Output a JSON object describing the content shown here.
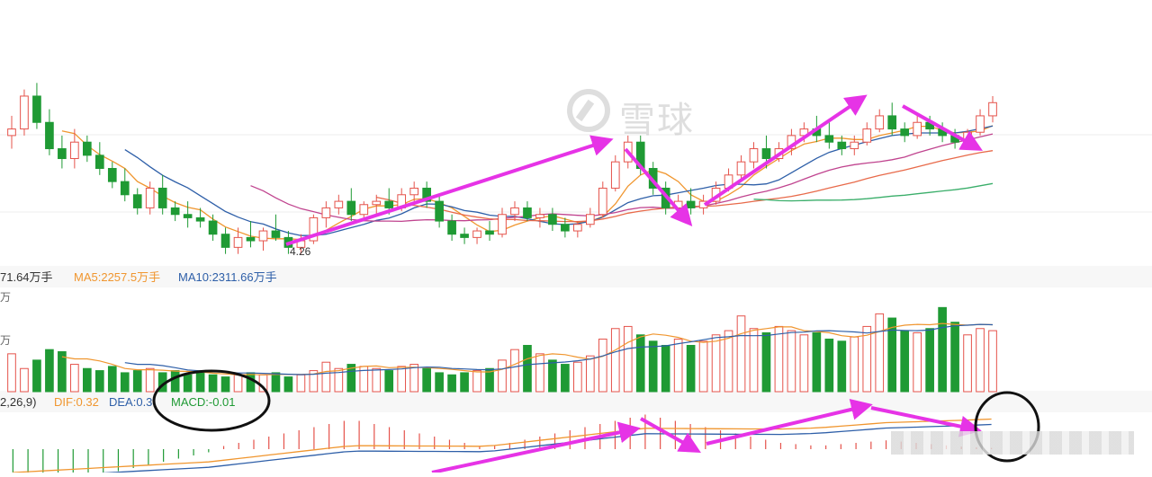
{
  "watermark": {
    "text": "雪球",
    "logo_icon": "xueqiu-logo-icon"
  },
  "price_panel": {
    "low_label": "4.26",
    "colors": {
      "up": "#e5534b",
      "down": "#1f9a34",
      "ma5": "#f0962f",
      "ma10": "#2e5fa8",
      "ma20": "#c0448f",
      "ma30": "#e86a4a",
      "ma60": "#3aae6a"
    }
  },
  "volume_labels": {
    "vol": "71.64万手",
    "ma5": "MA5:2257.5万手",
    "ma10": "MA10:2311.66万手",
    "axis_top": "万",
    "axis_mid": "万"
  },
  "macd_labels": {
    "params": "2,26,9)",
    "dif": "DIF:0.32",
    "dea": "DEA:0.3",
    "macd": "MACD:-0.01"
  },
  "annotations": {
    "arrow_color": "#e633e6",
    "circle_color": "#111111"
  },
  "chart_data": [
    {
      "type": "candlestick",
      "title": "",
      "candles_desc": "down-trend, base near 4.26, rally, pullback, rally, pullback, up",
      "low_marker": "4.26",
      "series": [
        {
          "name": "",
          "color": "#f0962f"
        },
        {
          "name": "",
          "color": "#2e5fa8"
        },
        {
          "name": "",
          "color": "#c0448f"
        },
        {
          "name": "",
          "color": "#3aae6a"
        }
      ],
      "candles": [
        [
          4.62,
          4.68,
          4.58,
          4.64
        ],
        [
          4.64,
          4.76,
          4.62,
          4.74
        ],
        [
          4.74,
          4.78,
          4.64,
          4.66
        ],
        [
          4.66,
          4.7,
          4.56,
          4.58
        ],
        [
          4.58,
          4.62,
          4.52,
          4.55
        ],
        [
          4.55,
          4.64,
          4.52,
          4.6
        ],
        [
          4.6,
          4.62,
          4.54,
          4.56
        ],
        [
          4.56,
          4.6,
          4.5,
          4.52
        ],
        [
          4.52,
          4.54,
          4.46,
          4.48
        ],
        [
          4.48,
          4.52,
          4.42,
          4.44
        ],
        [
          4.44,
          4.46,
          4.38,
          4.4
        ],
        [
          4.4,
          4.48,
          4.38,
          4.46
        ],
        [
          4.46,
          4.5,
          4.38,
          4.4
        ],
        [
          4.4,
          4.42,
          4.36,
          4.38
        ],
        [
          4.38,
          4.42,
          4.34,
          4.37
        ],
        [
          4.37,
          4.4,
          4.34,
          4.36
        ],
        [
          4.36,
          4.38,
          4.3,
          4.32
        ],
        [
          4.32,
          4.34,
          4.26,
          4.28
        ],
        [
          4.28,
          4.34,
          4.26,
          4.31
        ],
        [
          4.31,
          4.36,
          4.28,
          4.3
        ],
        [
          4.3,
          4.34,
          4.27,
          4.33
        ],
        [
          4.33,
          4.38,
          4.3,
          4.31
        ],
        [
          4.31,
          4.33,
          4.26,
          4.28
        ],
        [
          4.28,
          4.32,
          4.26,
          4.3
        ],
        [
          4.3,
          4.38,
          4.29,
          4.37
        ],
        [
          4.37,
          4.42,
          4.34,
          4.4
        ],
        [
          4.4,
          4.44,
          4.38,
          4.42
        ],
        [
          4.42,
          4.46,
          4.36,
          4.38
        ],
        [
          4.38,
          4.42,
          4.36,
          4.41
        ],
        [
          4.41,
          4.44,
          4.38,
          4.42
        ],
        [
          4.42,
          4.46,
          4.38,
          4.4
        ],
        [
          4.4,
          4.46,
          4.39,
          4.44
        ],
        [
          4.44,
          4.48,
          4.42,
          4.46
        ],
        [
          4.46,
          4.48,
          4.4,
          4.42
        ],
        [
          4.42,
          4.44,
          4.34,
          4.36
        ],
        [
          4.36,
          4.38,
          4.3,
          4.32
        ],
        [
          4.32,
          4.34,
          4.29,
          4.31
        ],
        [
          4.31,
          4.34,
          4.29,
          4.33
        ],
        [
          4.33,
          4.36,
          4.3,
          4.32
        ],
        [
          4.32,
          4.4,
          4.31,
          4.38
        ],
        [
          4.38,
          4.42,
          4.36,
          4.4
        ],
        [
          4.4,
          4.42,
          4.36,
          4.37
        ],
        [
          4.37,
          4.4,
          4.34,
          4.38
        ],
        [
          4.38,
          4.4,
          4.33,
          4.35
        ],
        [
          4.35,
          4.37,
          4.31,
          4.33
        ],
        [
          4.33,
          4.36,
          4.31,
          4.35
        ],
        [
          4.35,
          4.4,
          4.34,
          4.38
        ],
        [
          4.38,
          4.48,
          4.37,
          4.46
        ],
        [
          4.46,
          4.56,
          4.45,
          4.54
        ],
        [
          4.54,
          4.62,
          4.52,
          4.6
        ],
        [
          4.6,
          4.62,
          4.5,
          4.52
        ],
        [
          4.52,
          4.54,
          4.44,
          4.46
        ],
        [
          4.46,
          4.48,
          4.38,
          4.4
        ],
        [
          4.4,
          4.44,
          4.37,
          4.42
        ],
        [
          4.42,
          4.46,
          4.38,
          4.4
        ],
        [
          4.4,
          4.44,
          4.38,
          4.42
        ],
        [
          4.42,
          4.48,
          4.41,
          4.46
        ],
        [
          4.46,
          4.52,
          4.45,
          4.5
        ],
        [
          4.5,
          4.56,
          4.48,
          4.54
        ],
        [
          4.54,
          4.6,
          4.52,
          4.58
        ],
        [
          4.58,
          4.62,
          4.52,
          4.55
        ],
        [
          4.55,
          4.6,
          4.54,
          4.58
        ],
        [
          4.58,
          4.64,
          4.56,
          4.62
        ],
        [
          4.62,
          4.66,
          4.6,
          4.64
        ],
        [
          4.64,
          4.68,
          4.6,
          4.62
        ],
        [
          4.62,
          4.66,
          4.58,
          4.6
        ],
        [
          4.6,
          4.62,
          4.56,
          4.58
        ],
        [
          4.58,
          4.62,
          4.56,
          4.6
        ],
        [
          4.6,
          4.66,
          4.59,
          4.64
        ],
        [
          4.64,
          4.7,
          4.63,
          4.68
        ],
        [
          4.68,
          4.72,
          4.62,
          4.64
        ],
        [
          4.64,
          4.66,
          4.6,
          4.62
        ],
        [
          4.62,
          4.68,
          4.61,
          4.66
        ],
        [
          4.66,
          4.68,
          4.62,
          4.64
        ],
        [
          4.64,
          4.66,
          4.6,
          4.62
        ],
        [
          4.62,
          4.64,
          4.58,
          4.6
        ],
        [
          4.6,
          4.64,
          4.59,
          4.63
        ],
        [
          4.63,
          4.7,
          4.62,
          4.68
        ],
        [
          4.68,
          4.74,
          4.66,
          4.72
        ]
      ]
    },
    {
      "type": "bar",
      "title": "",
      "values": [
        36,
        22,
        30,
        40,
        38,
        26,
        22,
        20,
        24,
        18,
        20,
        22,
        18,
        20,
        16,
        18,
        16,
        14,
        16,
        18,
        16,
        18,
        14,
        16,
        20,
        28,
        22,
        26,
        24,
        22,
        20,
        24,
        26,
        22,
        18,
        16,
        18,
        20,
        22,
        30,
        40,
        44,
        36,
        30,
        26,
        28,
        34,
        50,
        60,
        62,
        54,
        48,
        44,
        50,
        44,
        48,
        54,
        58,
        72,
        60,
        56,
        62,
        58,
        54,
        56,
        50,
        48,
        52,
        62,
        74,
        70,
        58,
        56,
        60,
        80,
        66,
        54,
        60,
        58
      ],
      "ylabel": ""
    },
    {
      "type": "bar",
      "title": "",
      "values": [
        -0.06,
        -0.06,
        -0.055,
        -0.05,
        -0.045,
        -0.04,
        -0.038,
        -0.035,
        -0.03,
        -0.025,
        -0.02,
        -0.015,
        -0.01,
        -0.005,
        0.005,
        0.01,
        0.015,
        0.02,
        0.025,
        0.03,
        0.035,
        0.04,
        0.045,
        0.045,
        0.04,
        0.035,
        0.03,
        0.025,
        0.02,
        0.015,
        0.01,
        0.005,
        0.005,
        0.01,
        0.015,
        0.02,
        0.025,
        0.03,
        0.035,
        0.04,
        0.045,
        0.05,
        0.055,
        0.05,
        0.045,
        0.04,
        0.035,
        0.03,
        0.025,
        0.02,
        0.015,
        0.01,
        0.008,
        0.006,
        0.006,
        0.008,
        0.01,
        0.012,
        0.014,
        0.012,
        0.01,
        0.008,
        0.006,
        0.004,
        0.003,
        0.002
      ],
      "ylabel": ""
    }
  ]
}
